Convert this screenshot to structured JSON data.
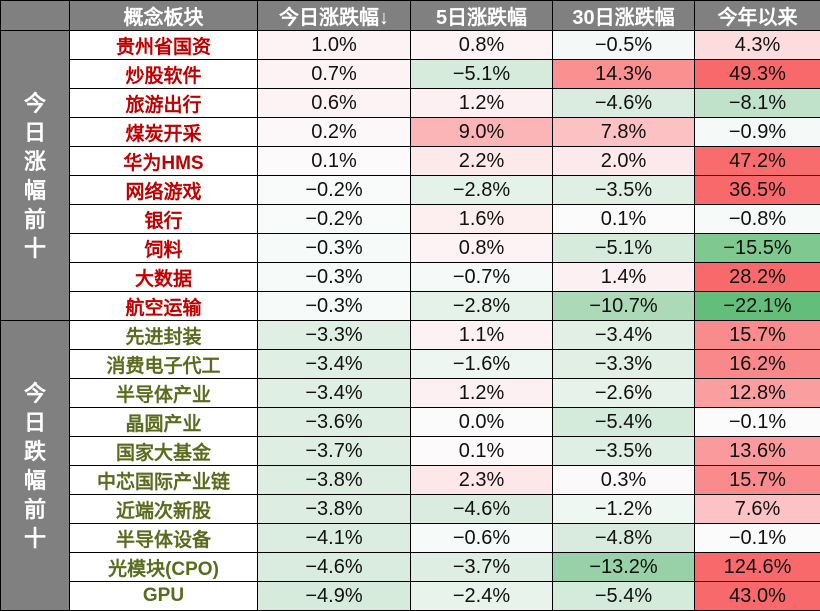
{
  "header": {
    "corner": "",
    "columns": [
      "概念板块",
      "今日涨跌幅↓",
      "5日涨跌幅",
      "30日涨跌幅",
      "今年以来"
    ]
  },
  "groups": [
    {
      "label": "今日涨幅前十",
      "chars": [
        "今",
        "日",
        "涨",
        "幅",
        "前",
        "十"
      ],
      "kind": "up",
      "rows": [
        {
          "name": "贵州省国资",
          "d1": "1.0%",
          "d5": "0.8%",
          "d30": "−0.5%",
          "ytd": "4.3%",
          "c1": "#fdf3f4",
          "c5": "#fdf3f4",
          "c30": "#f4f9f8",
          "cytd": "#fddcdd"
        },
        {
          "name": "炒股软件",
          "d1": "0.7%",
          "d5": "−5.1%",
          "d30": "14.3%",
          "ytd": "49.3%",
          "c1": "#fdf3f4",
          "c5": "#d6ebdc",
          "c30": "#fa9090",
          "cytd": "#f8696b"
        },
        {
          "name": "旅游出行",
          "d1": "0.6%",
          "d5": "1.2%",
          "d30": "−4.6%",
          "ytd": "−8.1%",
          "c1": "#fdf3f4",
          "c5": "#fdf0f2",
          "c30": "#d9ecdf",
          "cytd": "#c0e2ca"
        },
        {
          "name": "煤炭开采",
          "d1": "0.2%",
          "d5": "9.0%",
          "d30": "7.8%",
          "ytd": "−0.9%",
          "c1": "#fcf8f9",
          "c5": "#fbb5b7",
          "c30": "#fbc1c3",
          "cytd": "#f5f9f8"
        },
        {
          "name": "华为HMS",
          "d1": "0.1%",
          "d5": "2.2%",
          "d30": "2.0%",
          "ytd": "47.2%",
          "c1": "#fcfafb",
          "c5": "#fde8ea",
          "c30": "#fde9eb",
          "cytd": "#f86c6e"
        },
        {
          "name": "网络游戏",
          "d1": "−0.2%",
          "d5": "−2.8%",
          "d30": "−3.5%",
          "ytd": "36.5%",
          "c1": "#f8fbfa",
          "c5": "#e5f2e9",
          "c30": "#e0efe4",
          "cytd": "#f8696b"
        },
        {
          "name": "银行",
          "d1": "−0.2%",
          "d5": "1.6%",
          "d30": "0.1%",
          "ytd": "−0.8%",
          "c1": "#f8fbfa",
          "c5": "#fdeef0",
          "c30": "#fcfbfc",
          "cytd": "#f6faf9"
        },
        {
          "name": "饲料",
          "d1": "−0.3%",
          "d5": "0.8%",
          "d30": "−5.1%",
          "ytd": "−15.5%",
          "c1": "#f6faf9",
          "c5": "#fdf3f4",
          "c30": "#d6ebdc",
          "cytd": "#7fc88f"
        },
        {
          "name": "大数据",
          "d1": "−0.3%",
          "d5": "−0.7%",
          "d30": "1.4%",
          "ytd": "28.2%",
          "c1": "#f6faf9",
          "c5": "#f5f9f8",
          "c30": "#fdf0f2",
          "cytd": "#f8696b"
        },
        {
          "name": "航空运输",
          "d1": "−0.3%",
          "d5": "−2.8%",
          "d30": "−10.7%",
          "ytd": "−22.1%",
          "c1": "#f6faf9",
          "c5": "#e5f2e9",
          "c30": "#acd9b8",
          "cytd": "#63be7b"
        }
      ]
    },
    {
      "label": "今日跌幅前十",
      "chars": [
        "今",
        "日",
        "跌",
        "幅",
        "前",
        "十"
      ],
      "kind": "down",
      "rows": [
        {
          "name": "先进封装",
          "d1": "−3.3%",
          "d5": "1.1%",
          "d30": "−3.4%",
          "ytd": "15.7%",
          "c1": "#e0efe4",
          "c5": "#fdf1f3",
          "c30": "#e1efe5",
          "cytd": "#f98b8d"
        },
        {
          "name": "消费电子代工",
          "d1": "−3.4%",
          "d5": "−1.6%",
          "d30": "−3.3%",
          "ytd": "16.2%",
          "c1": "#e0efe4",
          "c5": "#edf6f0",
          "c30": "#e1efe5",
          "cytd": "#f8888a"
        },
        {
          "name": "半导体产业",
          "d1": "−3.4%",
          "d5": "1.2%",
          "d30": "−2.6%",
          "ytd": "12.8%",
          "c1": "#e0efe4",
          "c5": "#fdf0f2",
          "c30": "#e6f2ea",
          "cytd": "#fa9ea0"
        },
        {
          "name": "晶圆产业",
          "d1": "−3.6%",
          "d5": "0.0%",
          "d30": "−5.4%",
          "ytd": "−0.1%",
          "c1": "#dfeee3",
          "c5": "#fbfbfc",
          "c30": "#d4eada",
          "cytd": "#fbfbfc"
        },
        {
          "name": "国家大基金",
          "d1": "−3.7%",
          "d5": "0.1%",
          "d30": "−3.5%",
          "ytd": "13.6%",
          "c1": "#deeee3",
          "c5": "#fcfafb",
          "c30": "#e0efe4",
          "cytd": "#fa9a9c"
        },
        {
          "name": "中芯国际产业链",
          "d1": "−3.8%",
          "d5": "2.3%",
          "d30": "0.3%",
          "ytd": "15.7%",
          "c1": "#ddede2",
          "c5": "#fde7e9",
          "c30": "#fcf9fa",
          "cytd": "#f98b8d"
        },
        {
          "name": "近端次新股",
          "d1": "−3.8%",
          "d5": "−4.6%",
          "d30": "−1.2%",
          "ytd": "7.6%",
          "c1": "#ddede2",
          "c5": "#d9ecdf",
          "c30": "#eff7f2",
          "cytd": "#fbc3c5"
        },
        {
          "name": "半导体设备",
          "d1": "−4.1%",
          "d5": "−0.6%",
          "d30": "−4.8%",
          "ytd": "−0.1%",
          "c1": "#dbece0",
          "c5": "#f6faf9",
          "c30": "#d8ebde",
          "cytd": "#fbfbfc"
        },
        {
          "name": "光模块(CPO)",
          "d1": "−4.6%",
          "d5": "−3.7%",
          "d30": "−13.2%",
          "ytd": "124.6%",
          "c1": "#d9ecdf",
          "c5": "#dfeee3",
          "c30": "#98d1a7",
          "cytd": "#f8696b"
        },
        {
          "name": "GPU",
          "d1": "−4.9%",
          "d5": "−2.4%",
          "d30": "−5.4%",
          "ytd": "43.0%",
          "c1": "#d7ebdd",
          "c5": "#e7f3eb",
          "c30": "#d4eada",
          "cytd": "#f8696b"
        }
      ]
    }
  ],
  "colors": {
    "header_bg": "#808080",
    "header_text": "#ffffff",
    "up_name": "#c00000",
    "down_name": "#5a6b1e",
    "max_red": "#f8696b",
    "max_green": "#63be7b"
  }
}
